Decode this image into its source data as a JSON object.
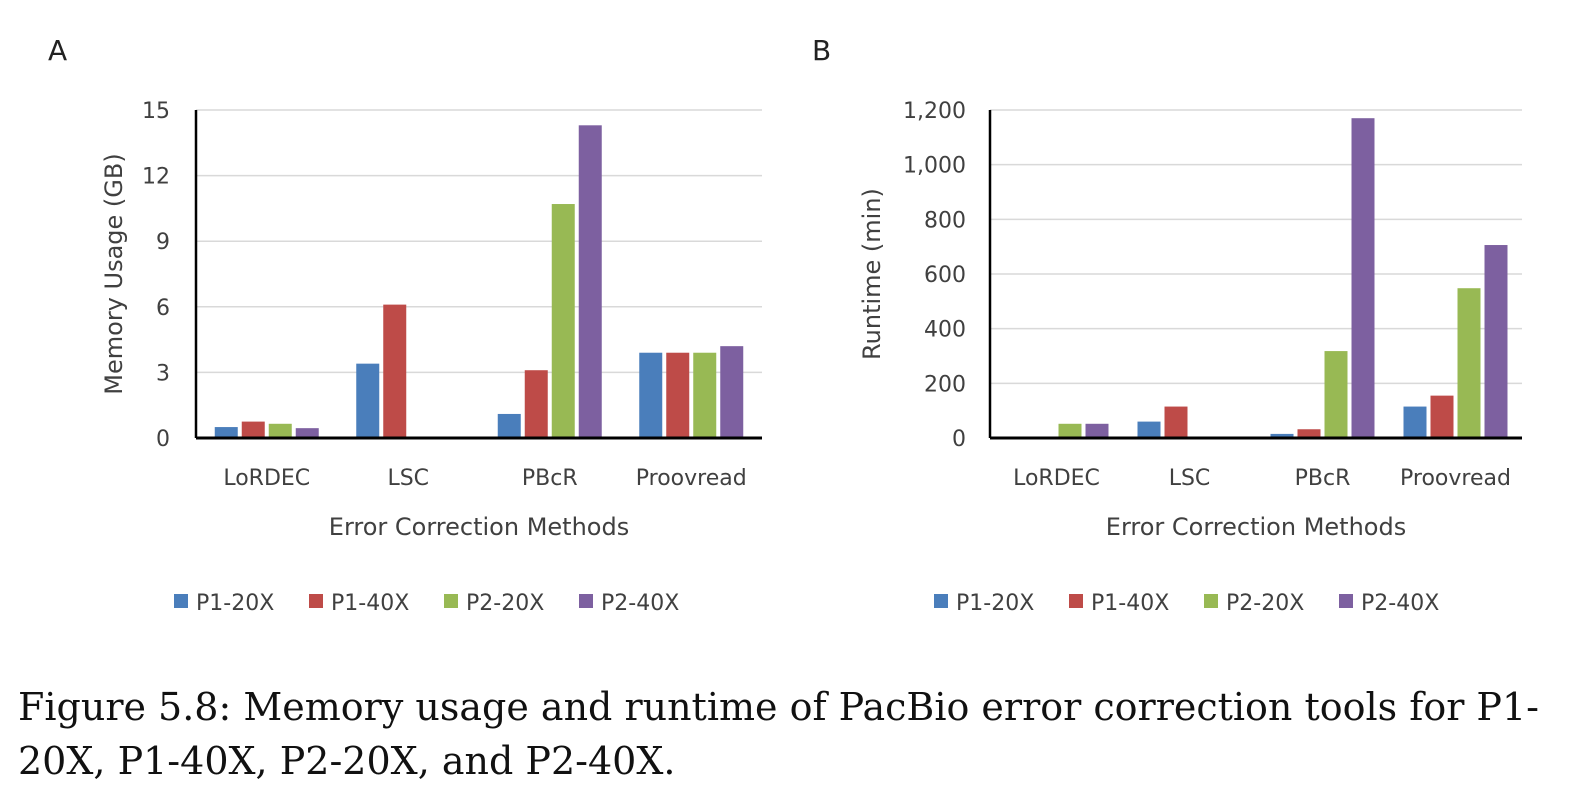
{
  "figure": {
    "caption": "Figure 5.8: Memory usage and runtime of PacBio error correction tools for P1-20X, P1-40X, P2-20X, and P2-40X."
  },
  "chart_data": [
    {
      "panel": "A",
      "type": "bar",
      "categories": [
        "LoRDEC",
        "LSC",
        "PBcR",
        "Proovread"
      ],
      "xlabel": "Error Correction Methods",
      "ylabel": "Memory Usage (GB)",
      "ylim": [
        0,
        15
      ],
      "yticks": [
        0,
        3,
        6,
        9,
        12,
        15
      ],
      "ytick_labels": [
        "0",
        "3",
        "6",
        "9",
        "12",
        "15"
      ],
      "grid": true,
      "legend_position": "bottom",
      "series": [
        {
          "name": "P1-20X",
          "color": "#4a7ebb",
          "values": [
            0.5,
            3.4,
            1.1,
            3.9
          ]
        },
        {
          "name": "P1-40X",
          "color": "#be4b48",
          "values": [
            0.75,
            6.1,
            3.1,
            3.9
          ]
        },
        {
          "name": "P2-20X",
          "color": "#98b954",
          "values": [
            0.65,
            0,
            10.7,
            3.9
          ]
        },
        {
          "name": "P2-40X",
          "color": "#7d60a0",
          "values": [
            0.45,
            0,
            14.3,
            4.2
          ]
        }
      ]
    },
    {
      "panel": "B",
      "type": "bar",
      "categories": [
        "LoRDEC",
        "LSC",
        "PBcR",
        "Proovread"
      ],
      "xlabel": "Error Correction Methods",
      "ylabel": "Runtime (min)",
      "ylim": [
        0,
        1200
      ],
      "yticks": [
        0,
        200,
        400,
        600,
        800,
        1000,
        1200
      ],
      "ytick_labels": [
        "0",
        "200",
        "400",
        "600",
        "800",
        "1,000",
        "1,200"
      ],
      "grid": true,
      "legend_position": "bottom",
      "series": [
        {
          "name": "P1-20X",
          "color": "#4a7ebb",
          "values": [
            0,
            60,
            15,
            115
          ]
        },
        {
          "name": "P1-40X",
          "color": "#be4b48",
          "values": [
            0,
            115,
            32,
            155
          ]
        },
        {
          "name": "P2-20X",
          "color": "#98b954",
          "values": [
            52,
            0,
            318,
            548
          ]
        },
        {
          "name": "P2-40X",
          "color": "#7d60a0",
          "values": [
            52,
            0,
            1170,
            706
          ]
        }
      ]
    }
  ]
}
